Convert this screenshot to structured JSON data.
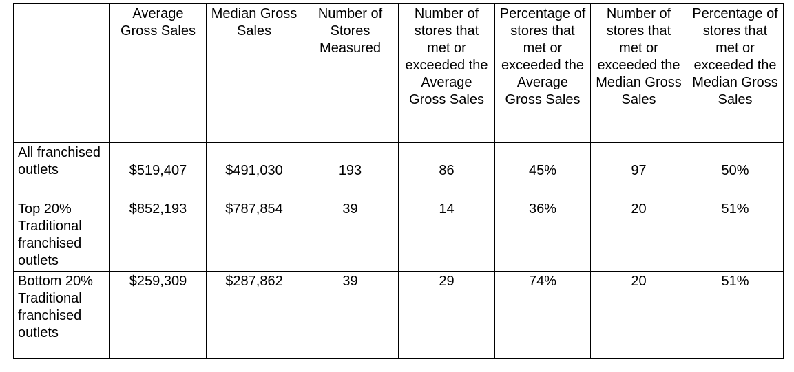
{
  "table": {
    "headers": [
      "",
      "Average Gross Sales",
      "Median Gross Sales",
      "Number of Stores Measured",
      "Number of stores that met or exceeded the Average Gross Sales",
      "Percentage of stores that met or exceeded the Average Gross Sales",
      "Number of stores that met or exceeded the Median Gross Sales",
      "Percentage of stores that met or exceeded the Median Gross Sales"
    ],
    "rows": [
      {
        "label": "All franchised outlets",
        "values": [
          "$519,407",
          "$491,030",
          "193",
          "86",
          "45%",
          "97",
          "50%"
        ]
      },
      {
        "label": "Top 20% Traditional franchised outlets",
        "values": [
          "$852,193",
          "$787,854",
          "39",
          "14",
          "36%",
          "20",
          "51%"
        ]
      },
      {
        "label": "Bottom 20% Traditional franchised outlets",
        "values": [
          "$259,309",
          "$287,862",
          "39",
          "29",
          "74%",
          "20",
          "51%"
        ]
      }
    ]
  }
}
